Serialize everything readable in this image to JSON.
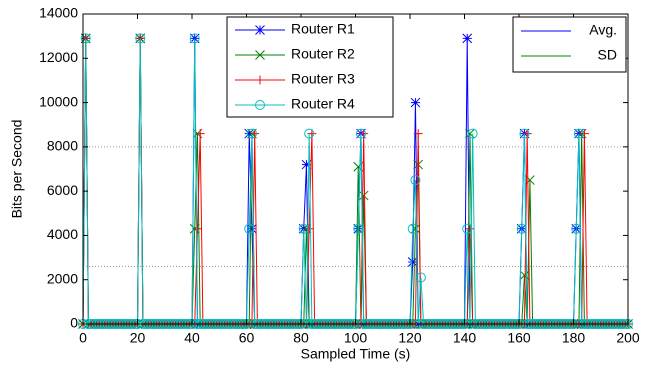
{
  "chart_data": {
    "type": "line",
    "xlabel": "Sampled Time (s)",
    "ylabel": "Bits per Second",
    "xlim": [
      0,
      200
    ],
    "xticks": [
      0,
      20,
      40,
      60,
      80,
      100,
      120,
      140,
      160,
      180,
      200
    ],
    "ylim": [
      0,
      14000
    ],
    "yticks": [
      0,
      2000,
      4000,
      6000,
      8000,
      10000,
      12000,
      14000
    ],
    "grid": false,
    "x": [
      0,
      1,
      2,
      3,
      4,
      5,
      6,
      7,
      8,
      9,
      10,
      11,
      12,
      13,
      14,
      15,
      16,
      17,
      18,
      19,
      20,
      21,
      22,
      23,
      24,
      25,
      26,
      27,
      28,
      29,
      30,
      31,
      32,
      33,
      34,
      35,
      36,
      37,
      38,
      39,
      40,
      41,
      42,
      43,
      44,
      45,
      46,
      47,
      48,
      49,
      50,
      51,
      52,
      53,
      54,
      55,
      56,
      57,
      58,
      59,
      60,
      61,
      62,
      63,
      64,
      65,
      66,
      67,
      68,
      69,
      70,
      71,
      72,
      73,
      74,
      75,
      76,
      77,
      78,
      79,
      80,
      81,
      82,
      83,
      84,
      85,
      86,
      87,
      88,
      89,
      90,
      91,
      92,
      93,
      94,
      95,
      96,
      97,
      98,
      99,
      100,
      101,
      102,
      103,
      104,
      105,
      106,
      107,
      108,
      109,
      110,
      111,
      112,
      113,
      114,
      115,
      116,
      117,
      118,
      119,
      120,
      121,
      122,
      123,
      124,
      125,
      126,
      127,
      128,
      129,
      130,
      131,
      132,
      133,
      134,
      135,
      136,
      137,
      138,
      139,
      140,
      141,
      142,
      143,
      144,
      145,
      146,
      147,
      148,
      149,
      150,
      151,
      152,
      153,
      154,
      155,
      156,
      157,
      158,
      159,
      160,
      161,
      162,
      163,
      164,
      165,
      166,
      167,
      168,
      169,
      170,
      171,
      172,
      173,
      174,
      175,
      176,
      177,
      178,
      179,
      180,
      181,
      182,
      183,
      184,
      185,
      186,
      187,
      188,
      189,
      190,
      191,
      192,
      193,
      194,
      195,
      196,
      197,
      198,
      199,
      200
    ],
    "series": [
      {
        "name": "Router R1",
        "color": "#0000ff",
        "marker": "star",
        "values": [
          0,
          12900,
          0,
          0,
          0,
          0,
          0,
          0,
          0,
          0,
          0,
          0,
          0,
          0,
          0,
          0,
          0,
          0,
          0,
          0,
          0,
          12900,
          0,
          0,
          0,
          0,
          0,
          0,
          0,
          0,
          0,
          0,
          0,
          0,
          0,
          0,
          0,
          0,
          0,
          0,
          0,
          12900,
          0,
          0,
          0,
          0,
          0,
          0,
          0,
          0,
          0,
          0,
          0,
          0,
          0,
          0,
          0,
          0,
          0,
          0,
          0,
          8600,
          4300,
          0,
          0,
          0,
          0,
          0,
          0,
          0,
          0,
          0,
          0,
          0,
          0,
          0,
          0,
          0,
          0,
          0,
          0,
          4300,
          7200,
          0,
          0,
          0,
          0,
          0,
          0,
          0,
          0,
          0,
          0,
          0,
          0,
          0,
          0,
          0,
          0,
          0,
          0,
          4300,
          8600,
          0,
          0,
          0,
          0,
          0,
          0,
          0,
          0,
          0,
          0,
          0,
          0,
          0,
          0,
          0,
          0,
          0,
          0,
          2800,
          10000,
          0,
          0,
          0,
          0,
          0,
          0,
          0,
          0,
          0,
          0,
          0,
          0,
          0,
          0,
          0,
          0,
          0,
          0,
          12900,
          0,
          0,
          0,
          0,
          0,
          0,
          0,
          0,
          0,
          0,
          0,
          0,
          0,
          0,
          0,
          0,
          0,
          0,
          0,
          4300,
          8600,
          0,
          0,
          0,
          0,
          0,
          0,
          0,
          0,
          0,
          0,
          0,
          0,
          0,
          0,
          0,
          0,
          0,
          0,
          4300,
          8600,
          0,
          0,
          0,
          0,
          0,
          0,
          0,
          0,
          0,
          0,
          0,
          0,
          0,
          0,
          0,
          0,
          0,
          0
        ]
      },
      {
        "name": "Router R2",
        "color": "#008000",
        "marker": "x",
        "values": [
          0,
          12900,
          0,
          0,
          0,
          0,
          0,
          0,
          0,
          0,
          0,
          0,
          0,
          0,
          0,
          0,
          0,
          0,
          0,
          0,
          0,
          12900,
          0,
          0,
          0,
          0,
          0,
          0,
          0,
          0,
          0,
          0,
          0,
          0,
          0,
          0,
          0,
          0,
          0,
          0,
          0,
          4300,
          8600,
          0,
          0,
          0,
          0,
          0,
          0,
          0,
          0,
          0,
          0,
          0,
          0,
          0,
          0,
          0,
          0,
          0,
          0,
          0,
          8600,
          0,
          0,
          0,
          0,
          0,
          0,
          0,
          0,
          0,
          0,
          0,
          0,
          0,
          0,
          0,
          0,
          0,
          0,
          0,
          4300,
          0,
          0,
          0,
          0,
          0,
          0,
          0,
          0,
          0,
          0,
          0,
          0,
          0,
          0,
          0,
          0,
          0,
          0,
          7100,
          0,
          5800,
          0,
          0,
          0,
          0,
          0,
          0,
          0,
          0,
          0,
          0,
          0,
          0,
          0,
          0,
          0,
          0,
          0,
          0,
          4300,
          7200,
          0,
          0,
          0,
          0,
          0,
          0,
          0,
          0,
          0,
          0,
          0,
          0,
          0,
          0,
          0,
          0,
          0,
          0,
          8600,
          0,
          0,
          0,
          0,
          0,
          0,
          0,
          0,
          0,
          0,
          0,
          0,
          0,
          0,
          0,
          0,
          0,
          0,
          0,
          2200,
          0,
          6500,
          0,
          0,
          0,
          0,
          0,
          0,
          0,
          0,
          0,
          0,
          0,
          0,
          0,
          0,
          0,
          0,
          0,
          0,
          8600,
          0,
          0,
          0,
          0,
          0,
          0,
          0,
          0,
          0,
          0,
          0,
          0,
          0,
          0,
          0,
          0,
          0
        ]
      },
      {
        "name": "Router R3",
        "color": "#ff0000",
        "marker": "plus",
        "values": [
          0,
          12900,
          0,
          0,
          0,
          0,
          0,
          0,
          0,
          0,
          0,
          0,
          0,
          0,
          0,
          0,
          0,
          0,
          0,
          0,
          0,
          12900,
          0,
          0,
          0,
          0,
          0,
          0,
          0,
          0,
          0,
          0,
          0,
          0,
          0,
          0,
          0,
          0,
          0,
          0,
          0,
          0,
          4300,
          8600,
          0,
          0,
          0,
          0,
          0,
          0,
          0,
          0,
          0,
          0,
          0,
          0,
          0,
          0,
          0,
          0,
          0,
          0,
          0,
          8600,
          0,
          0,
          0,
          0,
          0,
          0,
          0,
          0,
          0,
          0,
          0,
          0,
          0,
          0,
          0,
          0,
          0,
          0,
          0,
          4300,
          8600,
          0,
          0,
          0,
          0,
          0,
          0,
          0,
          0,
          0,
          0,
          0,
          0,
          0,
          0,
          0,
          0,
          0,
          0,
          8600,
          0,
          0,
          0,
          0,
          0,
          0,
          0,
          0,
          0,
          0,
          0,
          0,
          0,
          0,
          0,
          0,
          0,
          0,
          0,
          8600,
          0,
          0,
          0,
          0,
          0,
          0,
          0,
          0,
          0,
          0,
          0,
          0,
          0,
          0,
          0,
          0,
          0,
          0,
          4300,
          0,
          0,
          0,
          0,
          0,
          0,
          0,
          0,
          0,
          0,
          0,
          0,
          0,
          0,
          0,
          0,
          0,
          0,
          0,
          0,
          8600,
          0,
          0,
          0,
          0,
          0,
          0,
          0,
          0,
          0,
          0,
          0,
          0,
          0,
          0,
          0,
          0,
          0,
          0,
          0,
          0,
          8600,
          0,
          0,
          0,
          0,
          0,
          0,
          0,
          0,
          0,
          0,
          0,
          0,
          0,
          0,
          0,
          0
        ]
      },
      {
        "name": "Router R4",
        "color": "#00bfbf",
        "marker": "circle",
        "values": [
          0,
          12900,
          0,
          0,
          0,
          0,
          0,
          0,
          0,
          0,
          0,
          0,
          0,
          0,
          0,
          0,
          0,
          0,
          0,
          0,
          0,
          12900,
          0,
          0,
          0,
          0,
          0,
          0,
          0,
          0,
          0,
          0,
          0,
          0,
          0,
          0,
          0,
          0,
          0,
          0,
          0,
          12900,
          0,
          0,
          0,
          0,
          0,
          0,
          0,
          0,
          0,
          0,
          0,
          0,
          0,
          0,
          0,
          0,
          0,
          0,
          0,
          4300,
          8600,
          0,
          0,
          0,
          0,
          0,
          0,
          0,
          0,
          0,
          0,
          0,
          0,
          0,
          0,
          0,
          0,
          0,
          0,
          4300,
          0,
          8600,
          0,
          0,
          0,
          0,
          0,
          0,
          0,
          0,
          0,
          0,
          0,
          0,
          0,
          0,
          0,
          0,
          0,
          4300,
          8600,
          0,
          0,
          0,
          0,
          0,
          0,
          0,
          0,
          0,
          0,
          0,
          0,
          0,
          0,
          0,
          0,
          0,
          0,
          4300,
          6500,
          0,
          2100,
          0,
          0,
          0,
          0,
          0,
          0,
          0,
          0,
          0,
          0,
          0,
          0,
          0,
          0,
          0,
          0,
          4300,
          0,
          8600,
          0,
          0,
          0,
          0,
          0,
          0,
          0,
          0,
          0,
          0,
          0,
          0,
          0,
          0,
          0,
          0,
          0,
          4300,
          8600,
          0,
          0,
          0,
          0,
          0,
          0,
          0,
          0,
          0,
          0,
          0,
          0,
          0,
          0,
          0,
          0,
          0,
          0,
          4300,
          8600,
          0,
          0,
          0,
          0,
          0,
          0,
          0,
          0,
          0,
          0,
          0,
          0,
          0,
          0,
          0,
          0,
          0,
          0
        ]
      }
    ],
    "reference_lines": [
      {
        "name": "Avg.",
        "color": "#0000ff",
        "value": 8000
      },
      {
        "name": "SD",
        "color": "#008000",
        "value": 2600
      }
    ]
  }
}
